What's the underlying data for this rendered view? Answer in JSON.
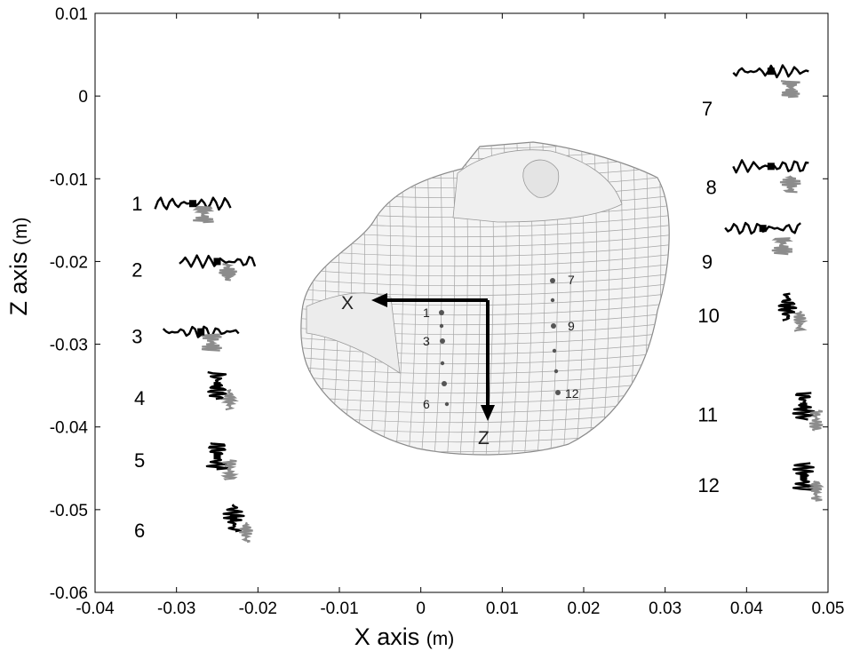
{
  "chart_data": {
    "type": "scatter",
    "xlabel": "X axis",
    "xlabel_unit": "(m)",
    "ylabel": "Z axis",
    "ylabel_unit": "(m)",
    "xlim": [
      -0.04,
      0.05
    ],
    "ylim": [
      -0.06,
      0.01
    ],
    "xticks": [
      "-0.04",
      "-0.03",
      "-0.02",
      "-0.01",
      "0",
      "0.01",
      "0.02",
      "0.03",
      "0.04",
      "0.05"
    ],
    "yticks": [
      "0.01",
      "0",
      "-0.01",
      "-0.02",
      "-0.03",
      "-0.04",
      "-0.05",
      "-0.06"
    ],
    "grid": false,
    "colors": {
      "trace_dark": "#000000",
      "trace_light": "#8c8c8c",
      "mesh": "#9a9a9a"
    },
    "traces": [
      {
        "label": "1",
        "x": -0.028,
        "y": -0.013,
        "label_x": -0.0355,
        "label_y": -0.013
      },
      {
        "label": "2",
        "x": -0.025,
        "y": -0.02,
        "label_x": -0.0355,
        "label_y": -0.021
      },
      {
        "label": "3",
        "x": -0.027,
        "y": -0.0285,
        "label_x": -0.0355,
        "label_y": -0.029
      },
      {
        "label": "4",
        "x": -0.025,
        "y": -0.035,
        "label_x": -0.0352,
        "label_y": -0.0365
      },
      {
        "label": "5",
        "x": -0.025,
        "y": -0.0435,
        "label_x": -0.0352,
        "label_y": -0.044
      },
      {
        "label": "6",
        "x": -0.023,
        "y": -0.051,
        "label_x": -0.0352,
        "label_y": -0.0525
      },
      {
        "label": "7",
        "x": 0.043,
        "y": 0.003,
        "label_x": 0.0345,
        "label_y": -0.0015
      },
      {
        "label": "8",
        "x": 0.043,
        "y": -0.0085,
        "label_x": 0.035,
        "label_y": -0.011
      },
      {
        "label": "9",
        "x": 0.042,
        "y": -0.016,
        "label_x": 0.0345,
        "label_y": -0.02
      },
      {
        "label": "10",
        "x": 0.045,
        "y": -0.0255,
        "label_x": 0.034,
        "label_y": -0.0265
      },
      {
        "label": "11",
        "x": 0.047,
        "y": -0.0375,
        "label_x": 0.034,
        "label_y": -0.0385
      },
      {
        "label": "12",
        "x": 0.047,
        "y": -0.046,
        "label_x": 0.034,
        "label_y": -0.047
      }
    ],
    "inset": {
      "description_labels": {
        "x_arrow": "X",
        "z_arrow": "Z"
      },
      "marker_labels": [
        "1",
        "3",
        "6",
        "7",
        "9",
        "12"
      ]
    }
  }
}
